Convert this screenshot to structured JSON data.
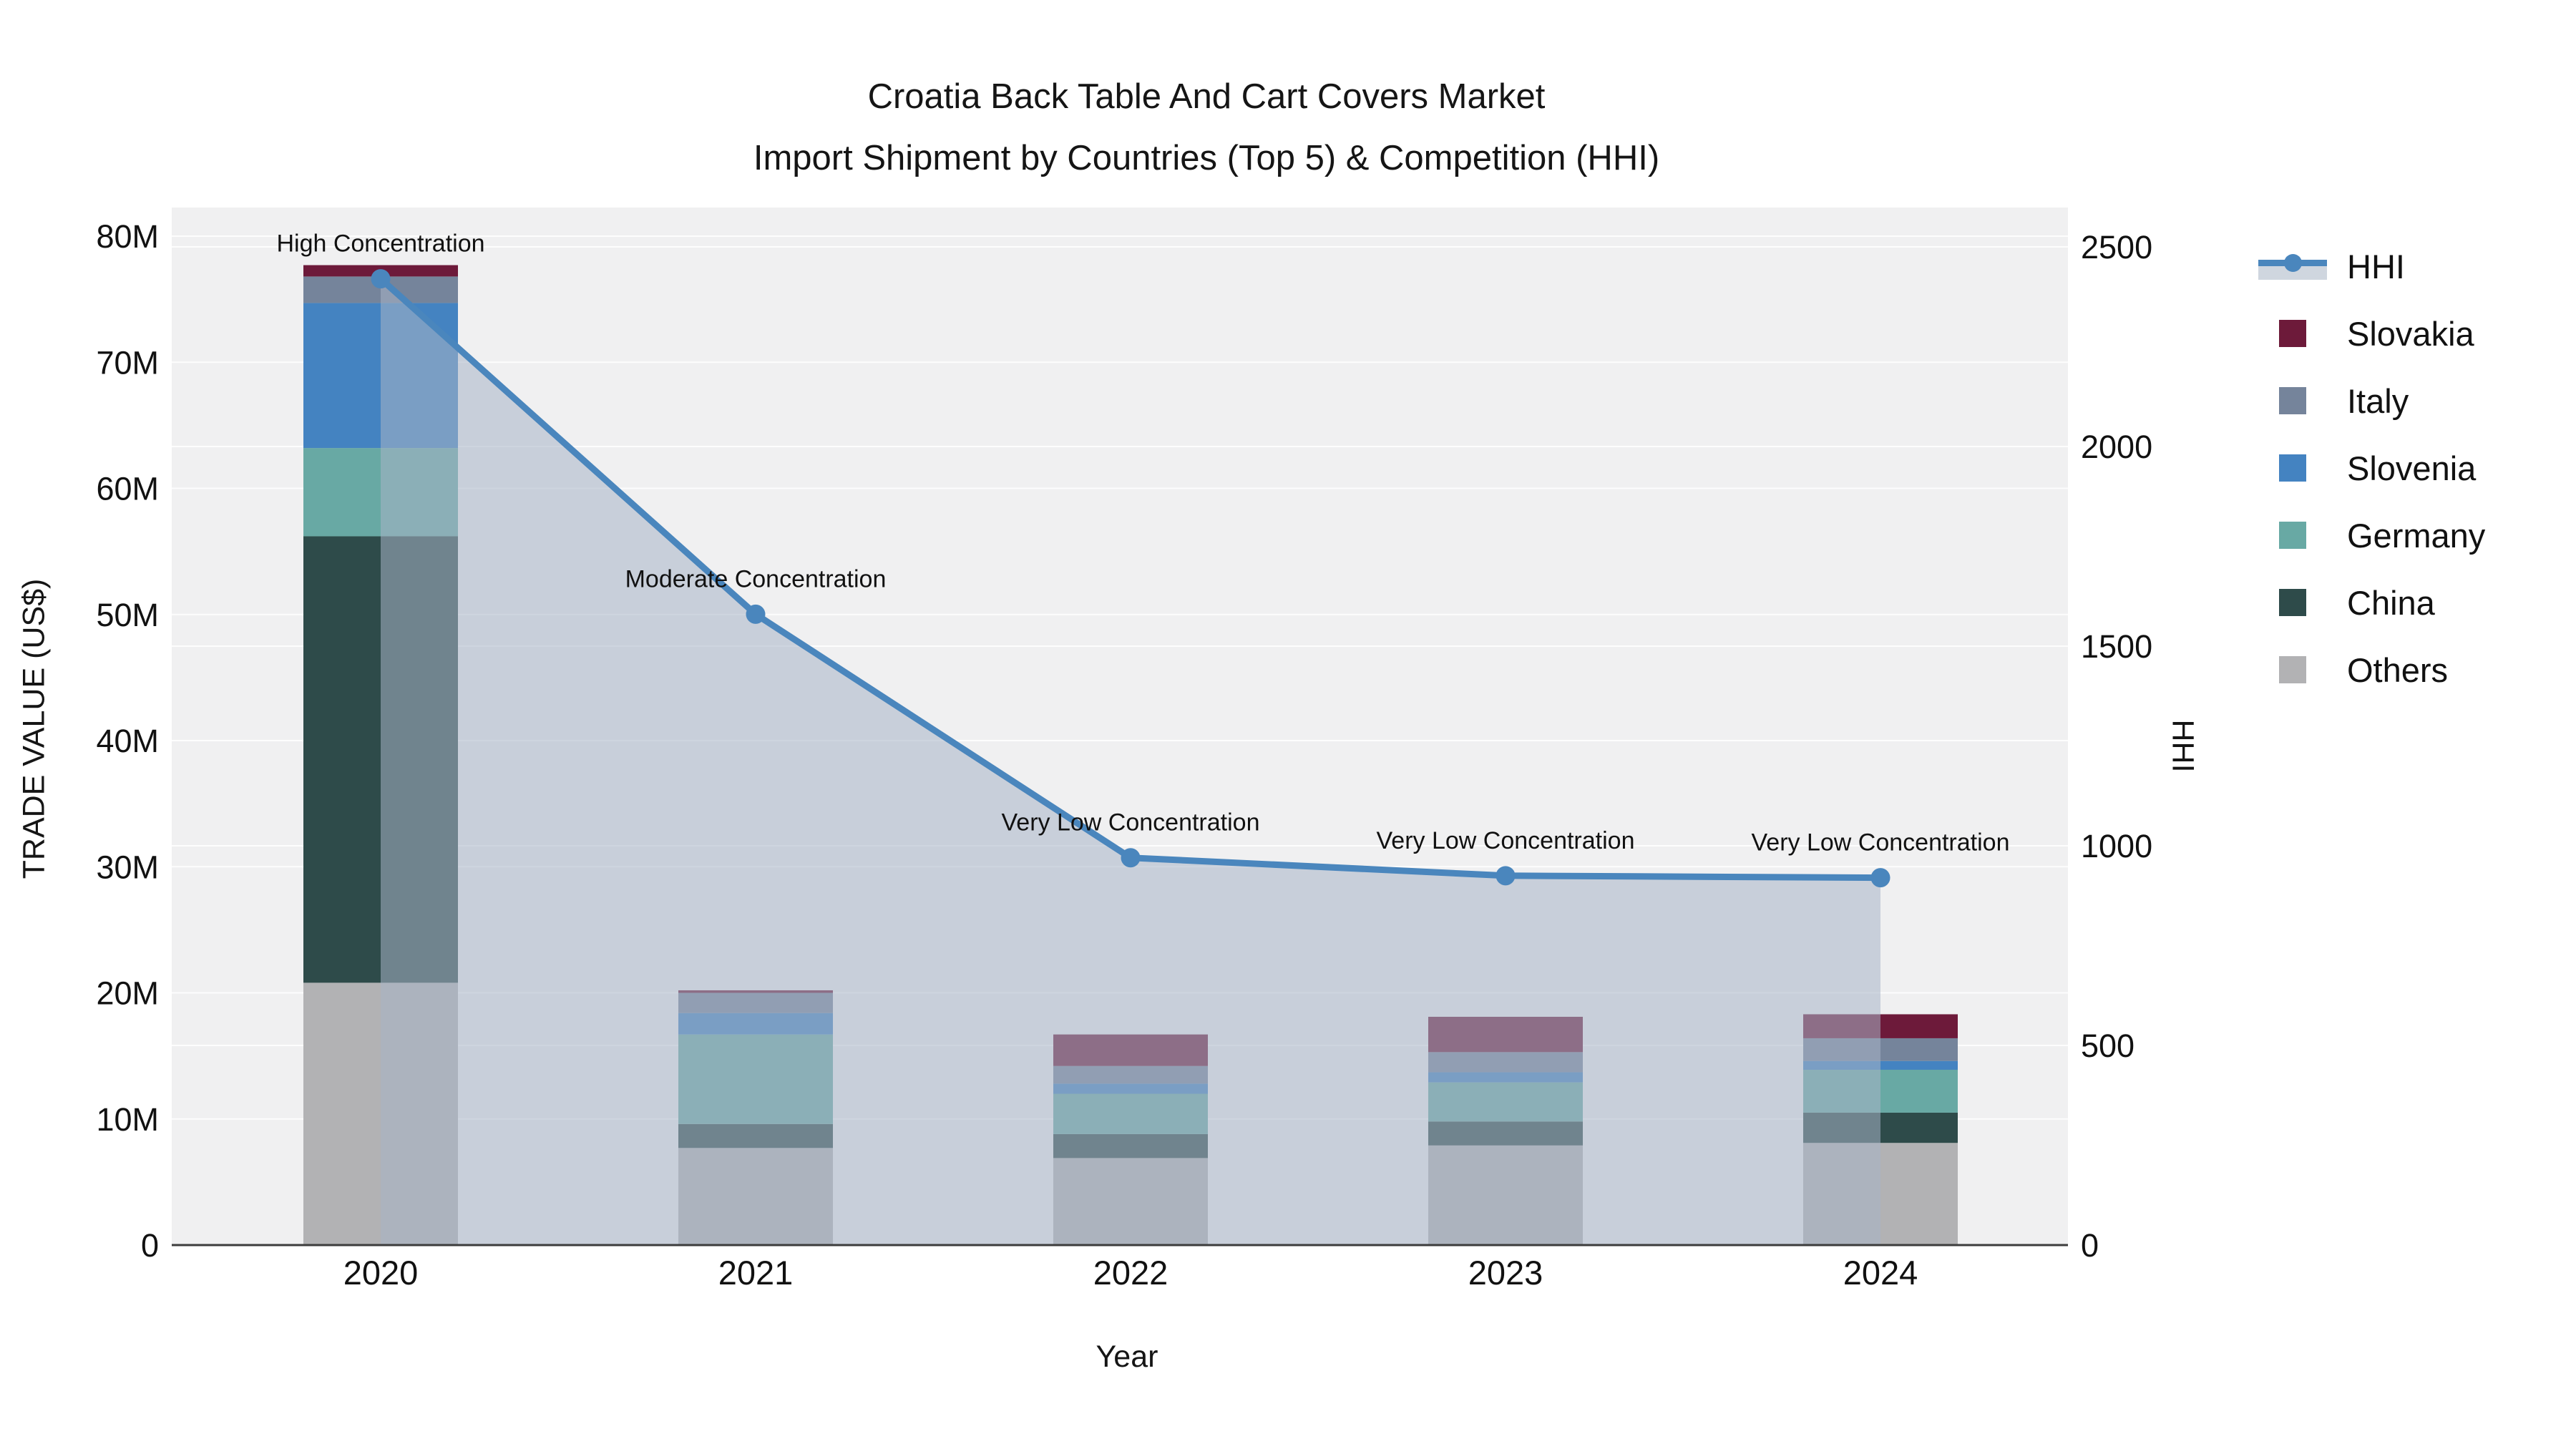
{
  "title": {
    "line1": "Croatia Back Table And Cart Covers Market",
    "line2": "Import Shipment by Countries (Top 5) & Competition (HHI)"
  },
  "axes": {
    "x": {
      "title": "Year",
      "categories": [
        "2020",
        "2021",
        "2022",
        "2023",
        "2024"
      ]
    },
    "y_left": {
      "title": "TRADE VALUE (US$)",
      "ticks": [
        "0",
        "10M",
        "20M",
        "30M",
        "40M",
        "50M",
        "60M",
        "70M",
        "80M"
      ],
      "range_musd": [
        0,
        80
      ]
    },
    "y_right": {
      "title": "HHI",
      "ticks": [
        "0",
        "500",
        "1000",
        "1500",
        "2000",
        "2500"
      ],
      "range": [
        0,
        2500
      ]
    }
  },
  "legend": {
    "items": [
      {
        "label": "HHI",
        "type": "line",
        "color": "#4a86bd"
      },
      {
        "label": "Slovakia",
        "type": "swatch",
        "color": "#6d1a3a"
      },
      {
        "label": "Italy",
        "type": "swatch",
        "color": "#75849b"
      },
      {
        "label": "Slovenia",
        "type": "swatch",
        "color": "#4483c1"
      },
      {
        "label": "Germany",
        "type": "swatch",
        "color": "#68a9a4"
      },
      {
        "label": "China",
        "type": "swatch",
        "color": "#2e4b4a"
      },
      {
        "label": "Others",
        "type": "swatch",
        "color": "#b2b2b4"
      }
    ]
  },
  "chart_data": {
    "type": "combo-stacked-bar-and-line",
    "title": "Croatia Back Table And Cart Covers Market — Import Shipment by Countries (Top 5) & Competition (HHI)",
    "categories": [
      "2020",
      "2021",
      "2022",
      "2023",
      "2024"
    ],
    "bar_units": "million US$",
    "stack_order_bottom_to_top": [
      "Others",
      "China",
      "Germany",
      "Slovenia",
      "Italy",
      "Slovakia"
    ],
    "series": [
      {
        "name": "Others",
        "color": "#b2b2b4",
        "values_musd": [
          20.8,
          7.7,
          6.9,
          7.9,
          8.1
        ]
      },
      {
        "name": "China",
        "color": "#2e4b4a",
        "values_musd": [
          35.4,
          1.9,
          1.9,
          1.9,
          2.4
        ]
      },
      {
        "name": "Germany",
        "color": "#68a9a4",
        "values_musd": [
          7.0,
          7.1,
          3.2,
          3.1,
          3.4
        ]
      },
      {
        "name": "Slovenia",
        "color": "#4483c1",
        "values_musd": [
          11.5,
          1.7,
          0.8,
          0.8,
          0.7
        ]
      },
      {
        "name": "Italy",
        "color": "#75849b",
        "values_musd": [
          2.1,
          1.6,
          1.4,
          1.6,
          1.8
        ]
      },
      {
        "name": "Slovakia",
        "color": "#6d1a3a",
        "values_musd": [
          0.9,
          0.2,
          2.5,
          2.8,
          1.9
        ]
      }
    ],
    "bar_totals_musd": [
      77.7,
      20.2,
      16.7,
      18.1,
      18.3
    ],
    "line_series": {
      "name": "HHI",
      "values": [
        2420,
        1580,
        970,
        925,
        920
      ],
      "color": "#4a86bd",
      "area_fill": "rgba(168,180,198,0.55)",
      "axis": "right"
    },
    "annotations": [
      {
        "category": "2020",
        "text": "High Concentration"
      },
      {
        "category": "2021",
        "text": "Moderate Concentration"
      },
      {
        "category": "2022",
        "text": "Very Low Concentration"
      },
      {
        "category": "2023",
        "text": "Very Low Concentration"
      },
      {
        "category": "2024",
        "text": "Very Low Concentration"
      }
    ],
    "xlabel": "Year",
    "ylabel_left": "TRADE VALUE (US$)",
    "ylabel_right": "HHI",
    "ylim_left_musd": [
      0,
      80
    ],
    "ylim_right": [
      0,
      2500
    ],
    "grid": true,
    "legend_position": "right",
    "plot_bg": "#f0f0f1",
    "grid_color": "rgba(255,255,255,0.85)",
    "axis_line_color": "#3c3c3c",
    "text_color": "#111111"
  }
}
